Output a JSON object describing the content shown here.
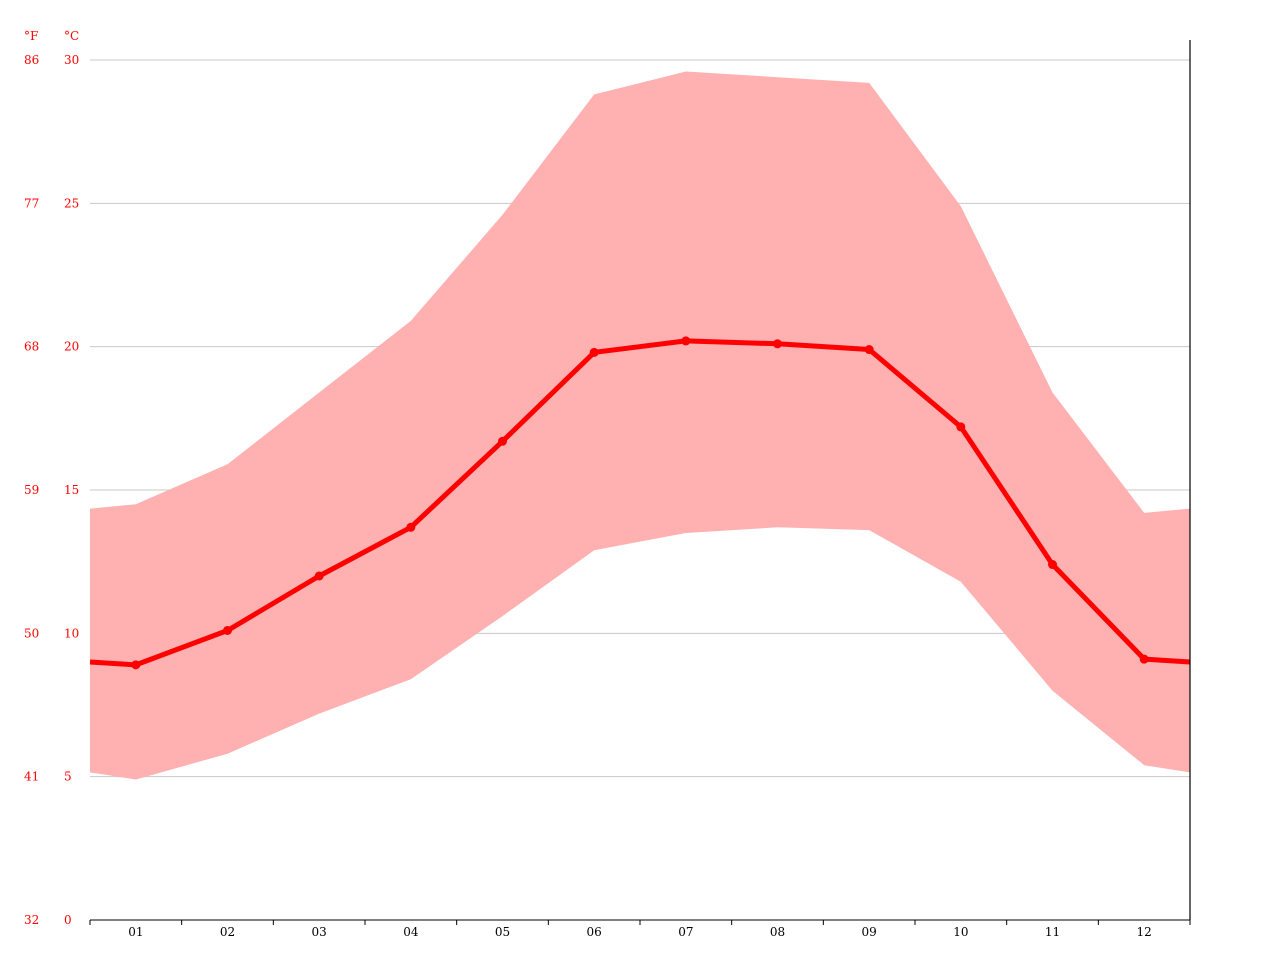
{
  "chart_data": {
    "type": "area",
    "title": "",
    "xlabel": "",
    "ylabel": "",
    "categories": [
      "01",
      "02",
      "03",
      "04",
      "05",
      "06",
      "07",
      "08",
      "09",
      "10",
      "11",
      "12"
    ],
    "y_unit_left": "°F",
    "y_unit_right": "°C",
    "ylim_c": [
      0,
      30
    ],
    "yticks_c": [
      "0",
      "5",
      "10",
      "15",
      "20",
      "25",
      "30"
    ],
    "yticks_f": [
      "32",
      "41",
      "50",
      "59",
      "68",
      "77",
      "86"
    ],
    "grid": true,
    "series": [
      {
        "values": [
          8.9,
          10.1,
          12.0,
          13.7,
          16.7,
          19.8,
          20.2,
          20.1,
          19.9,
          17.2,
          12.4,
          9.1
        ]
      },
      {
        "values": [
          14.5,
          15.9,
          18.4,
          20.9,
          24.6,
          28.8,
          29.6,
          29.4,
          29.2,
          24.9,
          18.4,
          14.2
        ]
      },
      {
        "values": [
          4.9,
          5.8,
          7.2,
          8.4,
          10.6,
          12.9,
          13.5,
          13.7,
          13.6,
          11.8,
          8.0,
          5.4
        ]
      }
    ],
    "colors": {
      "mean": "#ff0000",
      "range": "#ffb0b1",
      "label": "#ff0000",
      "grid": "#c8c8c8"
    }
  }
}
